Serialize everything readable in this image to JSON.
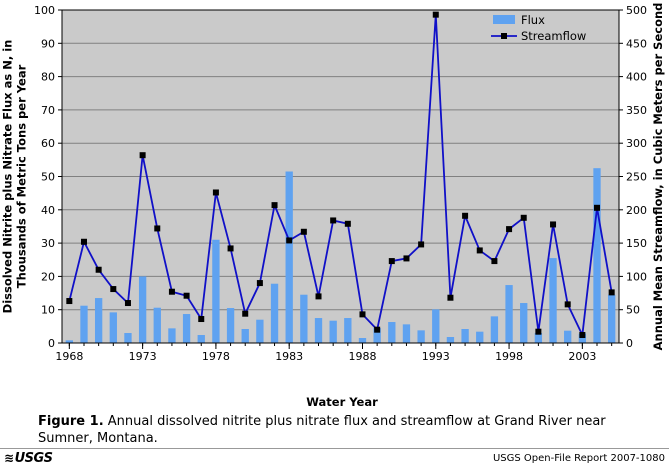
{
  "chart_data": {
    "type": "bar+line",
    "x": [
      1968,
      1969,
      1970,
      1971,
      1972,
      1973,
      1974,
      1975,
      1976,
      1977,
      1978,
      1979,
      1980,
      1981,
      1982,
      1983,
      1984,
      1985,
      1986,
      1987,
      1988,
      1989,
      1990,
      1991,
      1992,
      1993,
      1994,
      1995,
      1996,
      1997,
      1998,
      1999,
      2000,
      2001,
      2002,
      2003,
      2004,
      2005
    ],
    "xticks": [
      "1968",
      "1973",
      "1978",
      "1983",
      "1988",
      "1993",
      "1998",
      "2003"
    ],
    "xtick_values": [
      1968,
      1973,
      1978,
      1983,
      1988,
      1993,
      1998,
      2003
    ],
    "series": [
      {
        "name": "Flux",
        "kind": "bar",
        "axis": "left",
        "color": "#5fa2f0",
        "values": [
          0.8,
          11.2,
          13.5,
          9.2,
          3,
          20,
          10.6,
          4.4,
          8.7,
          2.4,
          31,
          10.5,
          4.2,
          7,
          17.8,
          51.5,
          14.5,
          7.5,
          6.7,
          7.5,
          1.5,
          4.5,
          6.3,
          5.6,
          3.8,
          10.1,
          1.8,
          4.2,
          3.4,
          8,
          17.4,
          12,
          3,
          25.5,
          3.7,
          2.8,
          52.5,
          14.5
        ]
      },
      {
        "name": "Streamflow",
        "kind": "line",
        "axis": "right",
        "color": "#1010c8",
        "values": [
          63,
          152,
          110,
          81,
          60,
          282,
          172,
          77,
          71,
          36,
          226,
          142,
          44,
          90,
          207,
          154,
          167,
          70,
          184,
          179,
          43,
          20,
          123,
          127,
          148,
          493,
          68,
          191,
          139,
          123,
          171,
          188,
          17,
          178,
          58,
          12,
          203,
          76
        ]
      }
    ],
    "left_axis": {
      "label": "Dissolved Nitrite plus Nitrate Flux as N, in Thousands of Metric Tons per Year",
      "ylim": [
        0,
        100
      ],
      "ticks": [
        "0",
        "10",
        "20",
        "30",
        "40",
        "50",
        "60",
        "70",
        "80",
        "90",
        "100"
      ]
    },
    "right_axis": {
      "label": "Annual Mean Streamflow, in Cubic Meters per Second",
      "ylim": [
        0,
        500
      ],
      "ticks": [
        "0",
        "50",
        "100",
        "150",
        "200",
        "250",
        "300",
        "350",
        "400",
        "450",
        "500"
      ]
    },
    "xlabel": "Water Year",
    "grid": true,
    "legend_position": "top-right",
    "colors": {
      "plot_background": "#cacaca",
      "gridline": "#808080"
    }
  },
  "caption": {
    "label": "Figure 1.",
    "text": "Annual dissolved nitrite plus nitrate flux and streamflow at Grand River near Sumner, Montana."
  },
  "footer": {
    "logo": "USGS",
    "report": "USGS Open-File Report 2007-1080"
  }
}
